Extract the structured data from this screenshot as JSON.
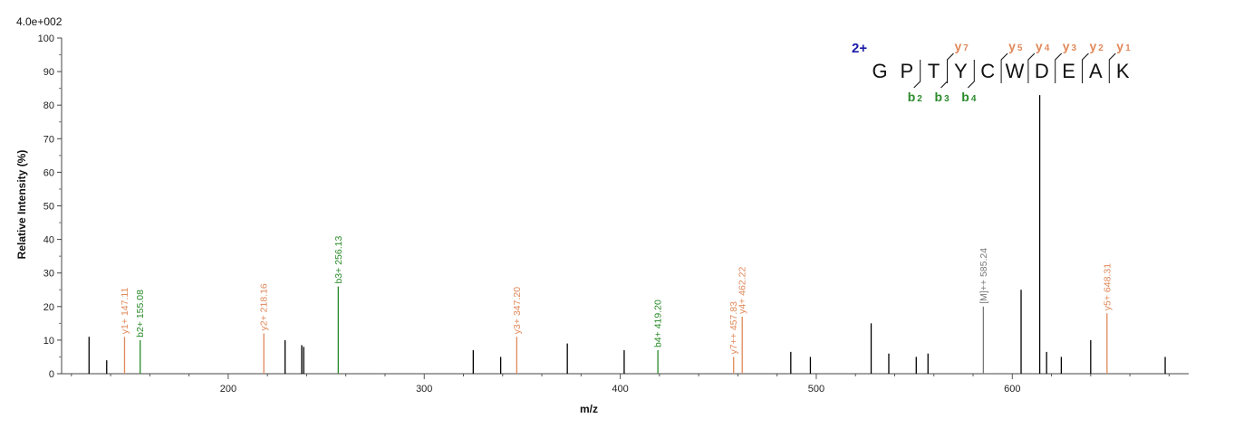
{
  "colors": {
    "y": "#e0895a",
    "b": "#2a8a2a",
    "precursor": "#7a7a7a",
    "other": "#000000",
    "charge": "#1a1aa6"
  },
  "chart_data": {
    "type": "bar",
    "intensity_scale": "4.0e+002",
    "xlabel": "m/z",
    "ylabel": "Relative   Intensity (%)",
    "xlim": [
      115,
      690
    ],
    "ylim": [
      0,
      100
    ],
    "x_ticks": [
      200,
      300,
      400,
      500,
      600
    ],
    "y_ticks": [
      0,
      10,
      20,
      30,
      40,
      50,
      60,
      70,
      80,
      90,
      100
    ],
    "peaks": [
      {
        "mz": 138.0,
        "intensity": 4,
        "type": "other",
        "label": ""
      },
      {
        "mz": 129.0,
        "intensity": 11,
        "type": "other",
        "label": ""
      },
      {
        "mz": 147.11,
        "intensity": 11,
        "type": "y",
        "label": "y1+ 147.11"
      },
      {
        "mz": 155.08,
        "intensity": 10,
        "type": "b",
        "label": "b2+ 155.08"
      },
      {
        "mz": 218.16,
        "intensity": 12,
        "type": "y",
        "label": "y2+ 218.16"
      },
      {
        "mz": 229.0,
        "intensity": 10,
        "type": "other",
        "label": ""
      },
      {
        "mz": 237.5,
        "intensity": 8.5,
        "type": "other",
        "label": ""
      },
      {
        "mz": 238.5,
        "intensity": 8,
        "type": "other",
        "label": ""
      },
      {
        "mz": 256.13,
        "intensity": 26,
        "type": "b",
        "label": "b3+ 256.13"
      },
      {
        "mz": 325.0,
        "intensity": 7,
        "type": "other",
        "label": ""
      },
      {
        "mz": 339.0,
        "intensity": 5,
        "type": "other",
        "label": ""
      },
      {
        "mz": 347.2,
        "intensity": 11,
        "type": "y",
        "label": "y3+ 347.20"
      },
      {
        "mz": 373.0,
        "intensity": 9,
        "type": "other",
        "label": ""
      },
      {
        "mz": 402.0,
        "intensity": 7,
        "type": "other",
        "label": ""
      },
      {
        "mz": 419.2,
        "intensity": 7,
        "type": "b",
        "label": "b4+ 419.20"
      },
      {
        "mz": 457.83,
        "intensity": 5,
        "type": "y",
        "label": "y7++ 457.83"
      },
      {
        "mz": 462.22,
        "intensity": 17,
        "type": "y",
        "label": "y4+ 462.22"
      },
      {
        "mz": 487.0,
        "intensity": 6.5,
        "type": "other",
        "label": ""
      },
      {
        "mz": 497.0,
        "intensity": 5,
        "type": "other",
        "label": ""
      },
      {
        "mz": 528.0,
        "intensity": 15,
        "type": "other",
        "label": ""
      },
      {
        "mz": 537.0,
        "intensity": 6,
        "type": "other",
        "label": ""
      },
      {
        "mz": 551.0,
        "intensity": 5,
        "type": "other",
        "label": ""
      },
      {
        "mz": 557.0,
        "intensity": 6,
        "type": "other",
        "label": ""
      },
      {
        "mz": 585.24,
        "intensity": 20,
        "type": "precursor",
        "label": "[M]++ 585.24"
      },
      {
        "mz": 604.5,
        "intensity": 25,
        "type": "other",
        "label": ""
      },
      {
        "mz": 614.0,
        "intensity": 83,
        "type": "other",
        "label": ""
      },
      {
        "mz": 617.5,
        "intensity": 6.5,
        "type": "other",
        "label": ""
      },
      {
        "mz": 625.0,
        "intensity": 5,
        "type": "other",
        "label": ""
      },
      {
        "mz": 640.0,
        "intensity": 10,
        "type": "other",
        "label": ""
      },
      {
        "mz": 648.31,
        "intensity": 18,
        "type": "y",
        "label": "y5+ 648.31"
      },
      {
        "mz": 678.0,
        "intensity": 5,
        "type": "other",
        "label": ""
      }
    ],
    "peptide": {
      "charge": "2+",
      "sequence": [
        "G",
        "P",
        "T",
        "Y",
        "C",
        "W",
        "D",
        "E",
        "A",
        "K"
      ],
      "y_ions": [
        {
          "label": "y",
          "sub": "7",
          "after": 3
        },
        {
          "label": "y",
          "sub": "5",
          "after": 5
        },
        {
          "label": "y",
          "sub": "4",
          "after": 6
        },
        {
          "label": "y",
          "sub": "3",
          "after": 7
        },
        {
          "label": "y",
          "sub": "2",
          "after": 8
        },
        {
          "label": "y",
          "sub": "1",
          "after": 9
        }
      ],
      "b_ions": [
        {
          "label": "b",
          "sub": "2",
          "after": 2
        },
        {
          "label": "b",
          "sub": "3",
          "after": 3
        },
        {
          "label": "b",
          "sub": "4",
          "after": 4
        }
      ]
    }
  }
}
